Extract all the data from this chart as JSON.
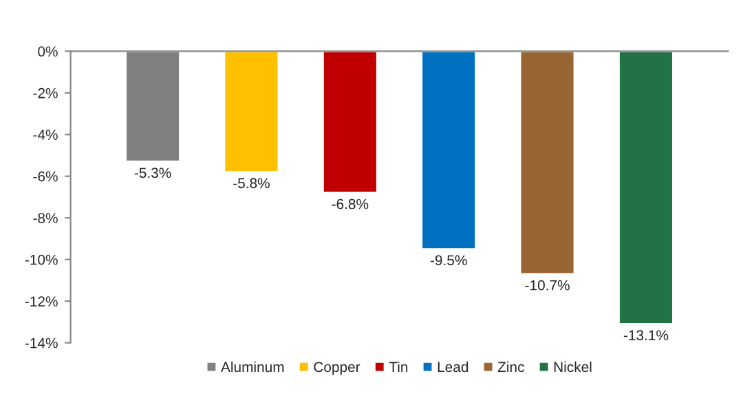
{
  "chart_data": {
    "type": "bar",
    "categories": [
      null
    ],
    "series": [
      {
        "name": "Aluminum",
        "color": "#808080",
        "values": [
          -5.3
        ],
        "value_labels": [
          "-5.3%"
        ]
      },
      {
        "name": "Copper",
        "color": "#ffc000",
        "values": [
          -5.8
        ],
        "value_labels": [
          "-5.8%"
        ]
      },
      {
        "name": "Tin",
        "color": "#c00000",
        "values": [
          -6.8
        ],
        "value_labels": [
          "-6.8%"
        ]
      },
      {
        "name": "Lead",
        "color": "#0070c0",
        "values": [
          -9.5
        ],
        "value_labels": [
          "-9.5%"
        ]
      },
      {
        "name": "Zinc",
        "color": "#996633",
        "values": [
          -10.7
        ],
        "value_labels": [
          "-10.7%"
        ]
      },
      {
        "name": "Nickel",
        "color": "#217346",
        "values": [
          -13.1
        ],
        "value_labels": [
          "-13.1%"
        ]
      }
    ],
    "ylim": [
      -14,
      0
    ],
    "yticks": [
      {
        "value": -14,
        "label": "-14%"
      },
      {
        "value": -12,
        "label": "-12%"
      },
      {
        "value": -10,
        "label": "-10%"
      },
      {
        "value": -8,
        "label": "-8%"
      },
      {
        "value": -6,
        "label": "-6%"
      },
      {
        "value": -4,
        "label": "-4%"
      },
      {
        "value": -2,
        "label": "-2%"
      },
      {
        "value": 0,
        "label": "0%"
      }
    ],
    "grid": false,
    "legend": "bottom"
  }
}
